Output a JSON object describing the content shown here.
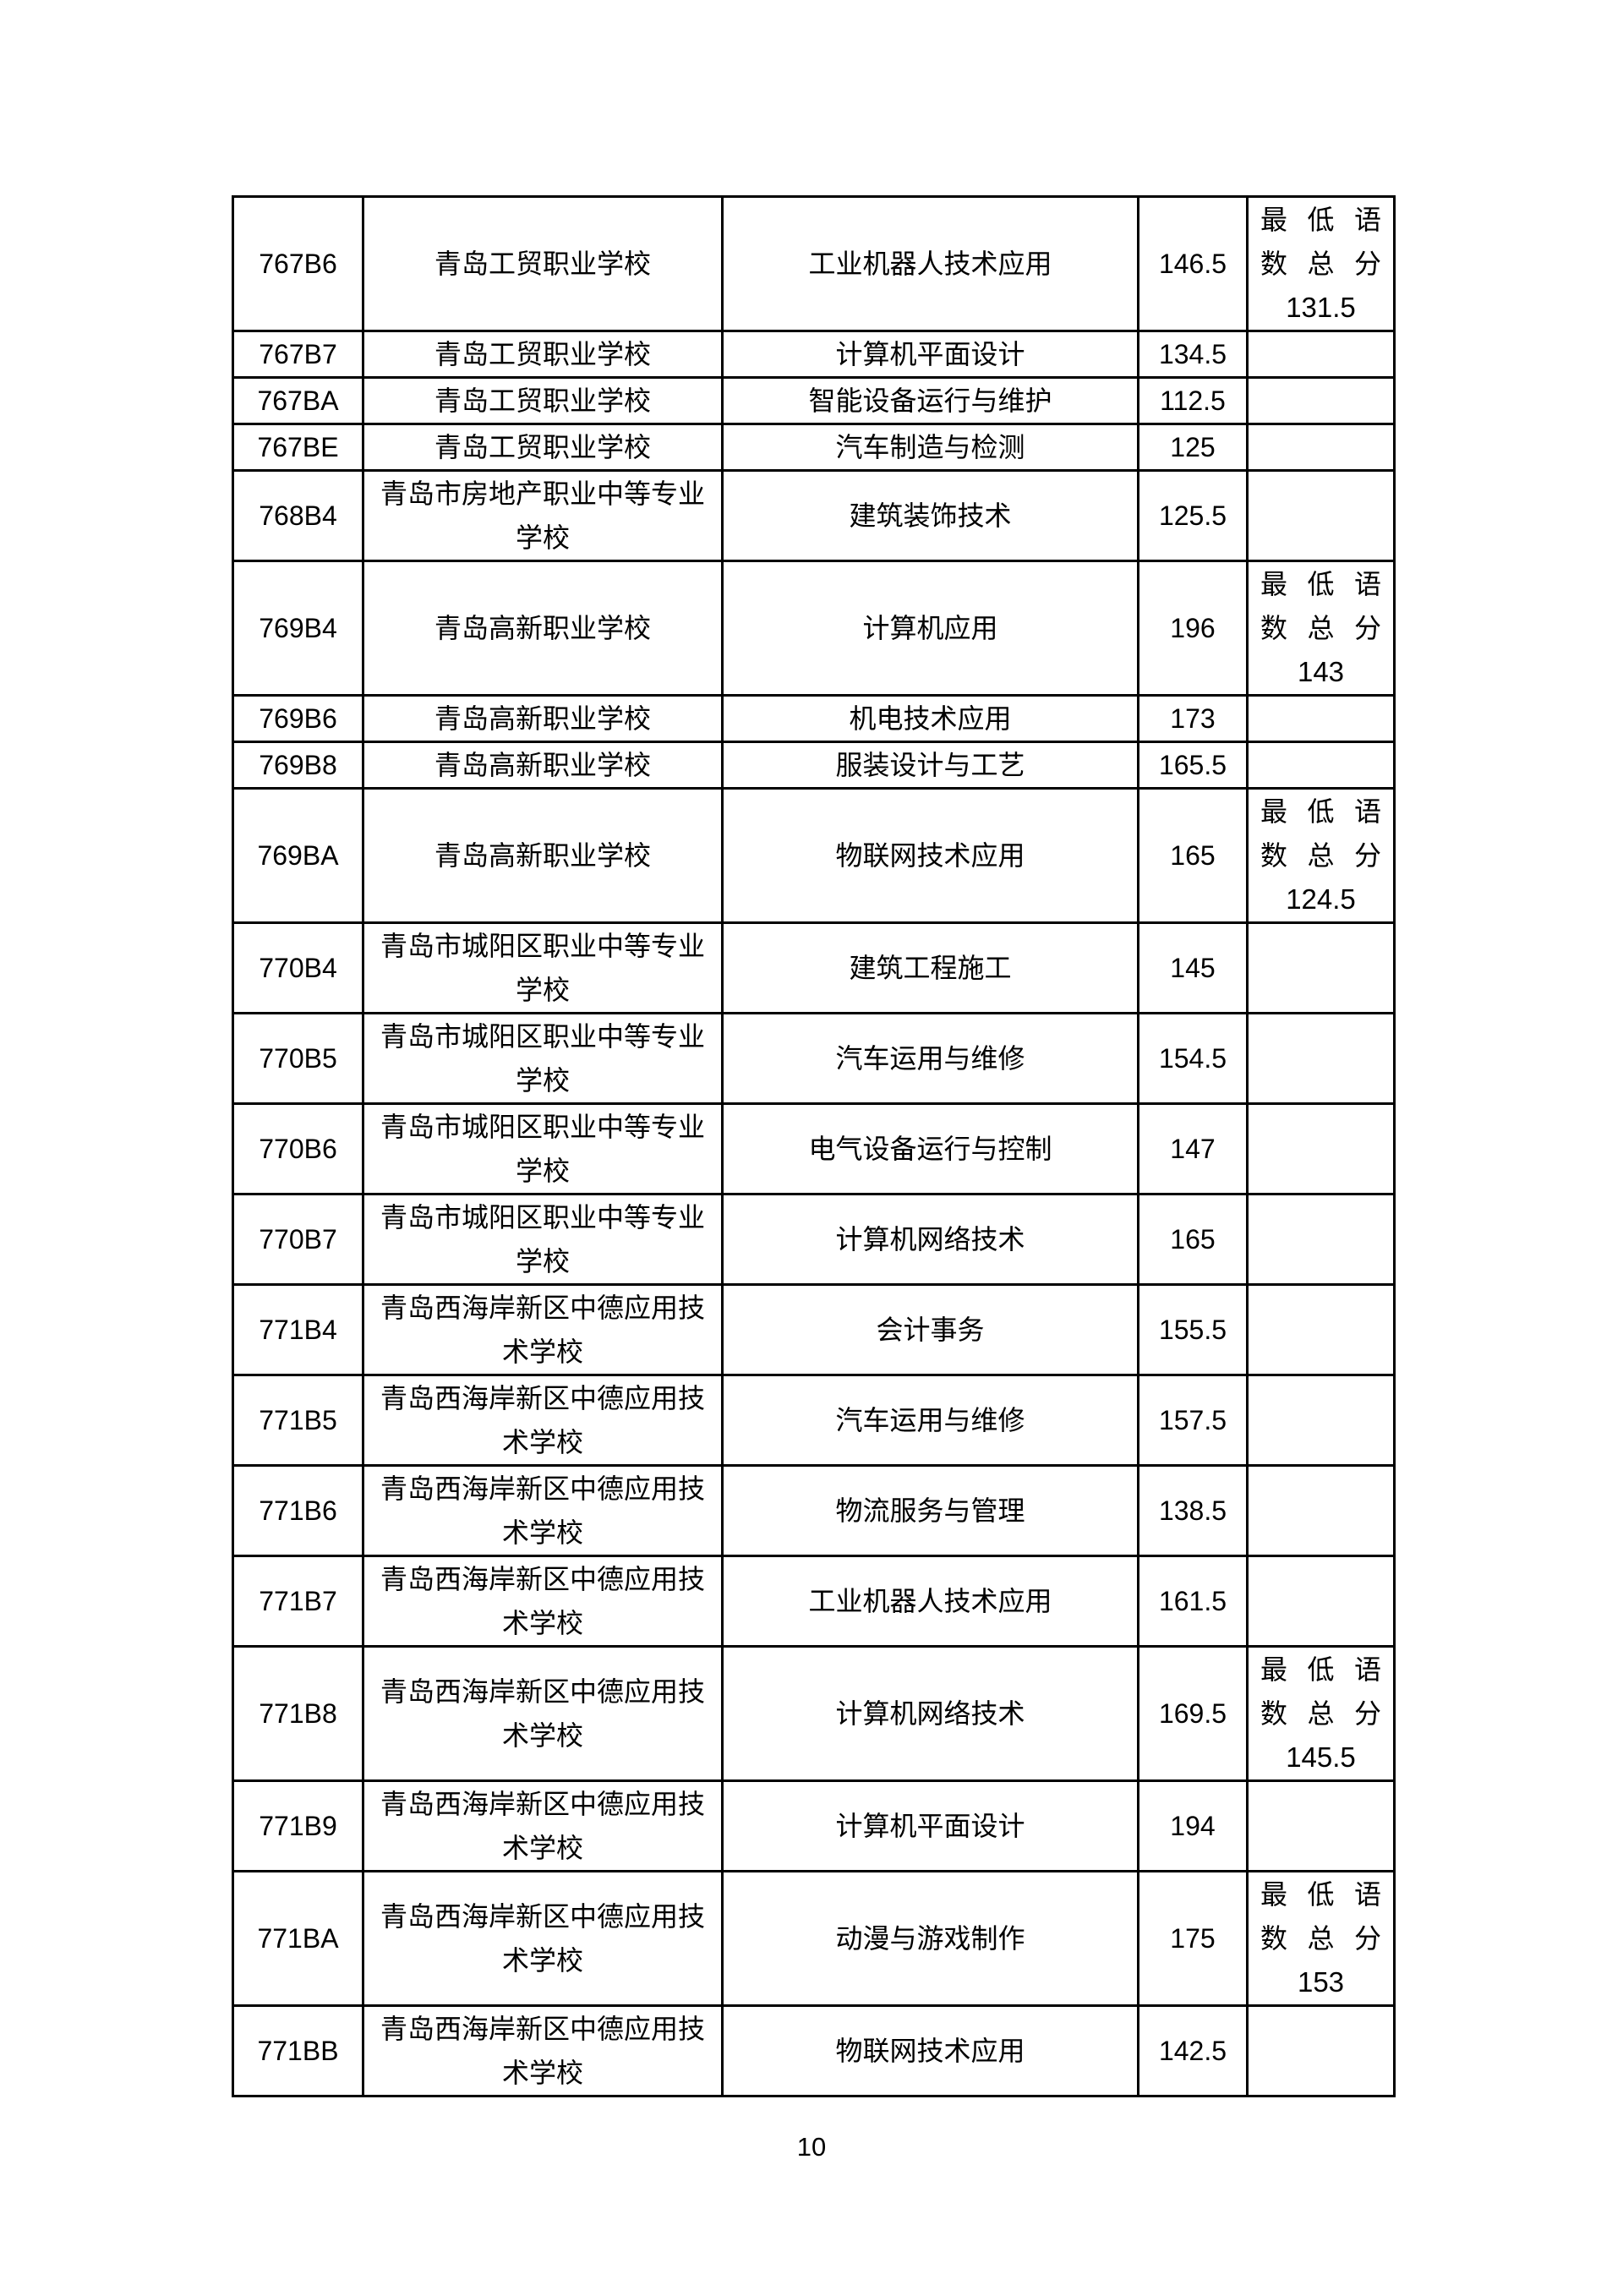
{
  "document": {
    "page_number": "10"
  },
  "table": {
    "note_rows_note_label": "最低语数总分",
    "rows": [
      {
        "code": "767B6",
        "school": "青岛工贸职业学校",
        "major": "工业机器人技术应用",
        "score": "146.5",
        "note": {
          "label": "最低语数总分",
          "value": "131.5"
        }
      },
      {
        "code": "767B7",
        "school": "青岛工贸职业学校",
        "major": "计算机平面设计",
        "score": "134.5",
        "note": null
      },
      {
        "code": "767BA",
        "school": "青岛工贸职业学校",
        "major": "智能设备运行与维护",
        "score": "112.5",
        "note": null
      },
      {
        "code": "767BE",
        "school": "青岛工贸职业学校",
        "major": "汽车制造与检测",
        "score": "125",
        "note": null
      },
      {
        "code": "768B4",
        "school": "青岛市房地产职业中等专业学校",
        "major": "建筑装饰技术",
        "score": "125.5",
        "note": null
      },
      {
        "code": "769B4",
        "school": "青岛高新职业学校",
        "major": "计算机应用",
        "score": "196",
        "note": {
          "label": "最低语数总分",
          "value": "143"
        }
      },
      {
        "code": "769B6",
        "school": "青岛高新职业学校",
        "major": "机电技术应用",
        "score": "173",
        "note": null
      },
      {
        "code": "769B8",
        "school": "青岛高新职业学校",
        "major": "服装设计与工艺",
        "score": "165.5",
        "note": null
      },
      {
        "code": "769BA",
        "school": "青岛高新职业学校",
        "major": "物联网技术应用",
        "score": "165",
        "note": {
          "label": "最低语数总分",
          "value": "124.5"
        }
      },
      {
        "code": "770B4",
        "school": "青岛市城阳区职业中等专业学校",
        "major": "建筑工程施工",
        "score": "145",
        "note": null
      },
      {
        "code": "770B5",
        "school": "青岛市城阳区职业中等专业学校",
        "major": "汽车运用与维修",
        "score": "154.5",
        "note": null
      },
      {
        "code": "770B6",
        "school": "青岛市城阳区职业中等专业学校",
        "major": "电气设备运行与控制",
        "score": "147",
        "note": null
      },
      {
        "code": "770B7",
        "school": "青岛市城阳区职业中等专业学校",
        "major": "计算机网络技术",
        "score": "165",
        "note": null
      },
      {
        "code": "771B4",
        "school": "青岛西海岸新区中德应用技术学校",
        "major": "会计事务",
        "score": "155.5",
        "note": null
      },
      {
        "code": "771B5",
        "school": "青岛西海岸新区中德应用技术学校",
        "major": "汽车运用与维修",
        "score": "157.5",
        "note": null
      },
      {
        "code": "771B6",
        "school": "青岛西海岸新区中德应用技术学校",
        "major": "物流服务与管理",
        "score": "138.5",
        "note": null
      },
      {
        "code": "771B7",
        "school": "青岛西海岸新区中德应用技术学校",
        "major": "工业机器人技术应用",
        "score": "161.5",
        "note": null
      },
      {
        "code": "771B8",
        "school": "青岛西海岸新区中德应用技术学校",
        "major": "计算机网络技术",
        "score": "169.5",
        "note": {
          "label": "最低语数总分",
          "value": "145.5"
        }
      },
      {
        "code": "771B9",
        "school": "青岛西海岸新区中德应用技术学校",
        "major": "计算机平面设计",
        "score": "194",
        "note": null
      },
      {
        "code": "771BA",
        "school": "青岛西海岸新区中德应用技术学校",
        "major": "动漫与游戏制作",
        "score": "175",
        "note": {
          "label": "最低语数总分",
          "value": "153"
        }
      },
      {
        "code": "771BB",
        "school": "青岛西海岸新区中德应用技术学校",
        "major": "物联网技术应用",
        "score": "142.5",
        "note": null
      }
    ]
  }
}
